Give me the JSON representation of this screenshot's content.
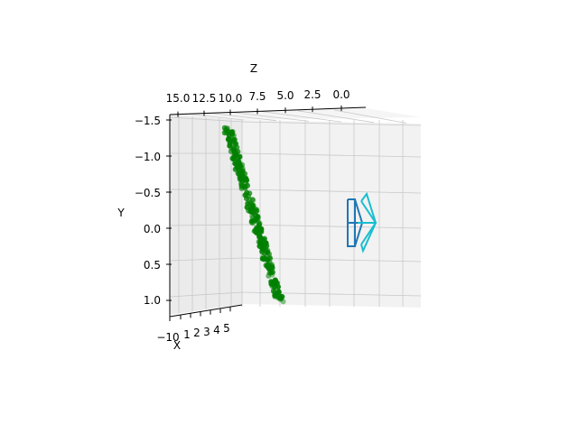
{
  "chart_data": {
    "type": "scatter",
    "projection": "3d",
    "xlabel": "X",
    "ylabel": "Y",
    "zlabel": "Z",
    "x_ticks": [
      "−10",
      "1",
      "2",
      "3",
      "4",
      "5"
    ],
    "y_ticks": [
      "−1.5",
      "−1.0",
      "−0.5",
      "0.0",
      "0.5",
      "1.0"
    ],
    "z_ticks": [
      "15.0",
      "12.5",
      "10.0",
      "7.5",
      "5.0",
      "2.5",
      "0.0"
    ],
    "ylim": [
      -1.5,
      1.25
    ],
    "zlim": [
      0.0,
      15.0
    ],
    "grid": true,
    "point_color": "#008000",
    "pane_color": "#f2f2f2",
    "point_cloud": {
      "description_free": true,
      "n_points": 260,
      "y_range": [
        -1.4,
        1.1
      ],
      "z_range": [
        10.0,
        7.0
      ]
    },
    "cameras": [
      {
        "color": "#1f77b4"
      },
      {
        "color": "#17becf"
      }
    ]
  }
}
